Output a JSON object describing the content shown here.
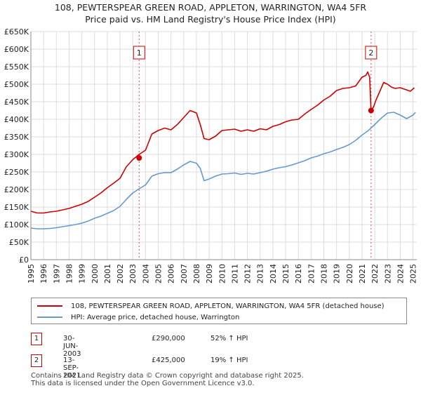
{
  "title_line1": "108, PEWTERSPEAR GREEN ROAD, APPLETON, WARRINGTON, WA4 5FR",
  "title_line2": "Price paid vs. HM Land Registry's House Price Index (HPI)",
  "colors": {
    "property": "#cc0000",
    "hpi": "#6699cc",
    "grid": "#dddddd",
    "vline": "#cc0000"
  },
  "chart_data": {
    "type": "line",
    "ylim": [
      0,
      650000
    ],
    "xlim": [
      1995.0,
      2025.3
    ],
    "y_ticks": [
      {
        "value": 0,
        "label": "£0"
      },
      {
        "value": 50000,
        "label": "£50K"
      },
      {
        "value": 100000,
        "label": "£100K"
      },
      {
        "value": 150000,
        "label": "£150K"
      },
      {
        "value": 200000,
        "label": "£200K"
      },
      {
        "value": 250000,
        "label": "£250K"
      },
      {
        "value": 300000,
        "label": "£300K"
      },
      {
        "value": 350000,
        "label": "£350K"
      },
      {
        "value": 400000,
        "label": "£400K"
      },
      {
        "value": 450000,
        "label": "£450K"
      },
      {
        "value": 500000,
        "label": "£500K"
      },
      {
        "value": 550000,
        "label": "£550K"
      },
      {
        "value": 600000,
        "label": "£600K"
      },
      {
        "value": 650000,
        "label": "£650K"
      }
    ],
    "x_ticks": [
      "1995",
      "1996",
      "1997",
      "1998",
      "1999",
      "2000",
      "2001",
      "2002",
      "2003",
      "2004",
      "2005",
      "2006",
      "2007",
      "2008",
      "2009",
      "2010",
      "2011",
      "2012",
      "2013",
      "2014",
      "2015",
      "2016",
      "2017",
      "2018",
      "2019",
      "2020",
      "2021",
      "2022",
      "2023",
      "2024",
      "2025"
    ],
    "series": [
      {
        "name": "108, PEWTERSPEAR GREEN ROAD, APPLETON, WARRINGTON, WA4 5FR (detached house)",
        "color": "#cc0000",
        "x": [
          1995.0,
          1995.5,
          1996.0,
          1996.5,
          1997.0,
          1997.5,
          1998.0,
          1998.5,
          1999.0,
          1999.5,
          2000.0,
          2000.5,
          2001.0,
          2001.5,
          2002.0,
          2002.5,
          2003.0,
          2003.5,
          2004.0,
          2004.5,
          2005.0,
          2005.5,
          2006.0,
          2006.5,
          2007.0,
          2007.5,
          2008.0,
          2008.3,
          2008.6,
          2009.0,
          2009.5,
          2010.0,
          2010.5,
          2011.0,
          2011.5,
          2012.0,
          2012.5,
          2013.0,
          2013.5,
          2014.0,
          2014.5,
          2015.0,
          2015.5,
          2016.0,
          2016.5,
          2017.0,
          2017.5,
          2018.0,
          2018.5,
          2019.0,
          2019.5,
          2020.0,
          2020.5,
          2021.0,
          2021.3,
          2021.45,
          2021.6,
          2021.71,
          2021.9,
          2022.1,
          2022.4,
          2022.7,
          2023.0,
          2023.3,
          2023.6,
          2024.0,
          2024.4,
          2024.8,
          2025.1
        ],
        "values": [
          138000,
          133000,
          133000,
          136000,
          138000,
          142000,
          146000,
          152000,
          158000,
          166000,
          178000,
          190000,
          205000,
          218000,
          232000,
          265000,
          285000,
          300000,
          312000,
          358000,
          368000,
          375000,
          370000,
          385000,
          405000,
          425000,
          418000,
          385000,
          345000,
          342000,
          352000,
          368000,
          370000,
          372000,
          366000,
          370000,
          366000,
          373000,
          370000,
          380000,
          385000,
          393000,
          398000,
          400000,
          415000,
          428000,
          440000,
          455000,
          466000,
          482000,
          488000,
          490000,
          495000,
          520000,
          525000,
          535000,
          520000,
          425000,
          435000,
          455000,
          480000,
          505000,
          500000,
          492000,
          488000,
          490000,
          485000,
          480000,
          490000
        ]
      },
      {
        "name": "HPI: Average price, detached house, Warrington",
        "color": "#6699cc",
        "x": [
          1995.0,
          1995.5,
          1996.0,
          1996.5,
          1997.0,
          1997.5,
          1998.0,
          1998.5,
          1999.0,
          1999.5,
          2000.0,
          2000.5,
          2001.0,
          2001.5,
          2002.0,
          2002.5,
          2003.0,
          2003.5,
          2004.0,
          2004.5,
          2005.0,
          2005.5,
          2006.0,
          2006.5,
          2007.0,
          2007.5,
          2008.0,
          2008.3,
          2008.6,
          2009.0,
          2009.5,
          2010.0,
          2010.5,
          2011.0,
          2011.5,
          2012.0,
          2012.5,
          2013.0,
          2013.5,
          2014.0,
          2014.5,
          2015.0,
          2015.5,
          2016.0,
          2016.5,
          2017.0,
          2017.5,
          2018.0,
          2018.5,
          2019.0,
          2019.5,
          2020.0,
          2020.5,
          2021.0,
          2021.5,
          2022.0,
          2022.5,
          2023.0,
          2023.5,
          2024.0,
          2024.5,
          2025.0,
          2025.2
        ],
        "values": [
          90000,
          88000,
          88000,
          89000,
          91000,
          94000,
          97000,
          100000,
          104000,
          110000,
          118000,
          124000,
          132000,
          140000,
          152000,
          172000,
          190000,
          202000,
          213000,
          238000,
          245000,
          248000,
          248000,
          258000,
          270000,
          280000,
          275000,
          260000,
          225000,
          230000,
          238000,
          244000,
          245000,
          247000,
          243000,
          246000,
          244000,
          248000,
          252000,
          258000,
          262000,
          265000,
          270000,
          276000,
          282000,
          290000,
          295000,
          302000,
          307000,
          314000,
          320000,
          328000,
          340000,
          355000,
          368000,
          385000,
          403000,
          418000,
          420000,
          412000,
          402000,
          412000,
          420000
        ]
      }
    ],
    "markers": [
      {
        "label": "1",
        "x": 2003.5,
        "value": 290000,
        "badge_value": 590000
      },
      {
        "label": "2",
        "x": 2021.71,
        "value": 425000,
        "badge_value": 590000
      }
    ]
  },
  "legend": {
    "property_label": "108, PEWTERSPEAR GREEN ROAD, APPLETON, WARRINGTON, WA4 5FR (detached house)",
    "hpi_label": "HPI: Average price, detached house, Warrington"
  },
  "transactions": [
    {
      "badge": "1",
      "date": "30-JUN-2003",
      "price": "£290,000",
      "hpi": "52% ↑ HPI"
    },
    {
      "badge": "2",
      "date": "13-SEP-2021",
      "price": "£425,000",
      "hpi": "19% ↑ HPI"
    }
  ],
  "footer": {
    "line1": "Contains HM Land Registry data © Crown copyright and database right 2025.",
    "line2": "This data is licensed under the Open Government Licence v3.0."
  }
}
